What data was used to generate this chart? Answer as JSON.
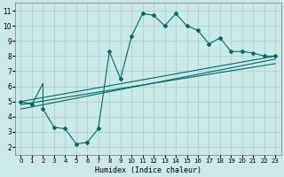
{
  "xlabel": "Humidex (Indice chaleur)",
  "bg_color": "#cce8e8",
  "line_color": "#006868",
  "xlim": [
    -0.5,
    23.5
  ],
  "ylim": [
    1.5,
    11.5
  ],
  "xticks": [
    0,
    1,
    2,
    3,
    4,
    5,
    6,
    7,
    8,
    9,
    10,
    11,
    12,
    13,
    14,
    15,
    16,
    17,
    18,
    19,
    20,
    21,
    22,
    23
  ],
  "yticks": [
    2,
    3,
    4,
    5,
    6,
    7,
    8,
    9,
    10,
    11
  ],
  "main_x": [
    0,
    1,
    2,
    2,
    3,
    4,
    5,
    6,
    7,
    8,
    9,
    10,
    11,
    12,
    13,
    14,
    15,
    16,
    17,
    18,
    19,
    20,
    21,
    22,
    23
  ],
  "main_y": [
    5.0,
    4.8,
    6.2,
    4.5,
    3.3,
    3.2,
    2.2,
    2.3,
    3.2,
    8.3,
    6.5,
    9.3,
    10.8,
    10.7,
    10.0,
    10.8,
    10.0,
    9.7,
    8.8,
    9.2,
    8.3,
    8.3,
    8.2,
    8.0,
    8.0
  ],
  "markers_x": [
    0,
    1,
    2,
    3,
    4,
    5,
    6,
    7,
    8,
    9,
    10,
    11,
    12,
    13,
    14,
    15,
    16,
    17,
    18,
    19,
    20,
    21,
    22,
    23
  ],
  "markers_y": [
    5.0,
    4.8,
    4.5,
    3.3,
    3.2,
    2.2,
    2.3,
    3.2,
    8.3,
    6.5,
    9.3,
    10.8,
    10.7,
    10.0,
    10.8,
    10.0,
    9.7,
    8.8,
    9.2,
    8.3,
    8.3,
    8.2,
    8.0,
    8.0
  ],
  "line1_x": [
    0,
    23
  ],
  "line1_y": [
    5.0,
    8.0
  ],
  "line2_x": [
    0,
    23
  ],
  "line2_y": [
    4.5,
    7.8
  ],
  "line3_x": [
    0,
    23
  ],
  "line3_y": [
    4.8,
    7.5
  ]
}
